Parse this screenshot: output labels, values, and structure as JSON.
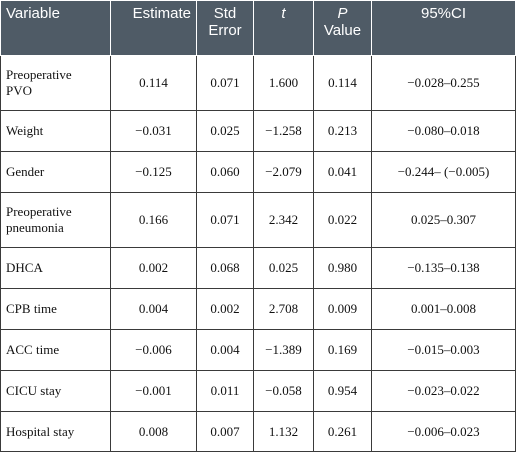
{
  "table": {
    "headers": [
      {
        "line1": "Variable",
        "line2": ""
      },
      {
        "line1": "Estimate",
        "line2": ""
      },
      {
        "line1": "Std",
        "line2": "Error"
      },
      {
        "line1": "t",
        "line2": ""
      },
      {
        "line1": "P",
        "line2": "Value"
      },
      {
        "line1": "95%CI",
        "line2": ""
      }
    ],
    "rows": [
      {
        "variable": [
          "Preoperative",
          "PVO"
        ],
        "estimate": "0.114",
        "std_error": "0.071",
        "t": "1.600",
        "p": "0.114",
        "ci": "−0.028–0.255"
      },
      {
        "variable": [
          "Weight",
          ""
        ],
        "estimate": "−0.031",
        "std_error": "0.025",
        "t": "−1.258",
        "p": "0.213",
        "ci": "−0.080–0.018"
      },
      {
        "variable": [
          "Gender",
          ""
        ],
        "estimate": "−0.125",
        "std_error": "0.060",
        "t": "−2.079",
        "p": "0.041",
        "ci": "−0.244– (−0.005)"
      },
      {
        "variable": [
          "Preoperative",
          "pneumonia"
        ],
        "estimate": "0.166",
        "std_error": "0.071",
        "t": "2.342",
        "p": "0.022",
        "ci": "0.025–0.307"
      },
      {
        "variable": [
          "DHCA",
          ""
        ],
        "estimate": "0.002",
        "std_error": "0.068",
        "t": "0.025",
        "p": "0.980",
        "ci": "−0.135–0.138"
      },
      {
        "variable": [
          "CPB time",
          ""
        ],
        "estimate": "0.004",
        "std_error": "0.002",
        "t": "2.708",
        "p": "0.009",
        "ci": "0.001–0.008"
      },
      {
        "variable": [
          "ACC time",
          ""
        ],
        "estimate": "−0.006",
        "std_error": "0.004",
        "t": "−1.389",
        "p": "0.169",
        "ci": "−0.015–0.003"
      },
      {
        "variable": [
          "CICU stay",
          ""
        ],
        "estimate": "−0.001",
        "std_error": "0.011",
        "t": "−0.058",
        "p": "0.954",
        "ci": "−0.023–0.022"
      },
      {
        "variable": [
          "Hospital stay",
          ""
        ],
        "estimate": "0.008",
        "std_error": "0.007",
        "t": "1.132",
        "p": "0.261",
        "ci": "−0.006–0.023"
      }
    ]
  }
}
